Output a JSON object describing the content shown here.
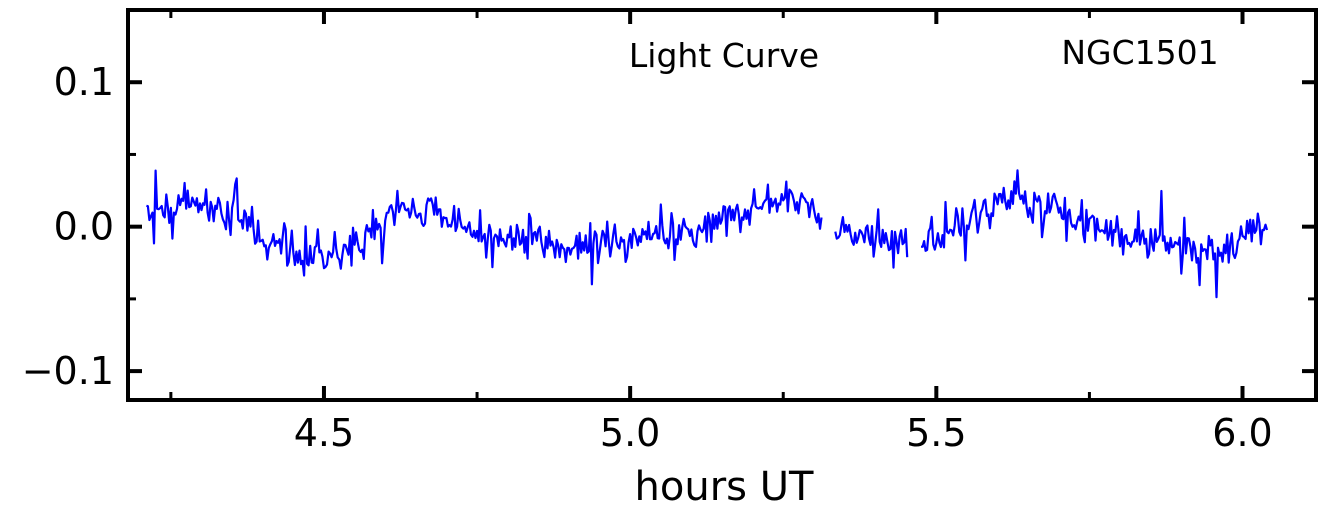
{
  "chart_data": {
    "type": "line",
    "title": "",
    "xlabel": "hours UT",
    "ylabel": "",
    "xlim": [
      4.18,
      6.12
    ],
    "ylim": [
      -0.12,
      0.15
    ],
    "x_ticks": [
      4.5,
      5.0,
      5.5,
      6.0
    ],
    "x_tick_labels": [
      "4.5",
      "5.0",
      "5.5",
      "6.0"
    ],
    "y_ticks": [
      -0.1,
      0.0,
      0.1
    ],
    "y_tick_labels": [
      "−0.1",
      "0.0",
      "0.1"
    ],
    "annotations": [
      {
        "text": "Light Curve",
        "position": "top-center"
      },
      {
        "text": "NGC1501",
        "position": "top-right"
      }
    ],
    "grid": false,
    "series": [
      {
        "color": "#0000ff",
        "x_start": 4.21,
        "x_end": 6.04,
        "x_step": 0.0025,
        "gaps": [
          [
            5.315,
            5.335
          ],
          [
            5.455,
            5.475
          ]
        ],
        "profile_x": [
          4.21,
          4.3,
          4.36,
          4.45,
          4.55,
          4.62,
          4.7,
          4.8,
          4.9,
          5.0,
          5.1,
          5.17,
          5.23,
          5.27,
          5.31,
          5.36,
          5.44,
          5.48,
          5.55,
          5.62,
          5.68,
          5.75,
          5.85,
          5.95,
          6.04
        ],
        "profile_y": [
          0.01,
          0.015,
          0.005,
          -0.022,
          -0.015,
          0.012,
          0.008,
          -0.012,
          -0.015,
          -0.008,
          -0.005,
          0.008,
          0.02,
          0.018,
          0.008,
          -0.005,
          -0.012,
          -0.01,
          0.003,
          0.022,
          0.015,
          0.0,
          -0.01,
          -0.015,
          0.0
        ],
        "noise_amplitude": 0.011
      }
    ]
  }
}
